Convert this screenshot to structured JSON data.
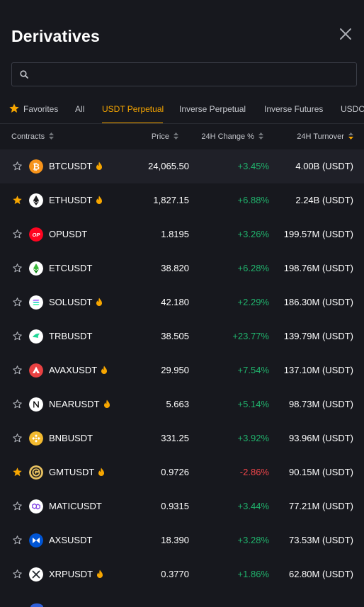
{
  "title": "Derivatives",
  "search": {
    "placeholder": ""
  },
  "tabs": [
    {
      "label": "Favorites",
      "active": false,
      "icon": "star-icon"
    },
    {
      "label": "All",
      "active": false
    },
    {
      "label": "USDT Perpetual",
      "active": true
    },
    {
      "label": "Inverse Perpetual",
      "active": false
    },
    {
      "label": "Inverse Futures",
      "active": false
    },
    {
      "label": "USDC",
      "active": false
    }
  ],
  "columns": {
    "contracts": "Contracts",
    "price": "Price",
    "change": "24H Change %",
    "turnover": "24H Turnover"
  },
  "colors": {
    "accent": "#f7a600",
    "positive": "#20b26c",
    "negative": "#ef454a",
    "background": "#17181e"
  },
  "rows": [
    {
      "symbol": "BTCUSDT",
      "favorite": false,
      "hot": true,
      "coin_icon": "bitcoin-icon",
      "price": "24,065.50",
      "change": "+3.45%",
      "direction": "up",
      "turnover": "4.00B (USDT)"
    },
    {
      "symbol": "ETHUSDT",
      "favorite": true,
      "hot": true,
      "coin_icon": "ethereum-icon",
      "price": "1,827.15",
      "change": "+6.88%",
      "direction": "up",
      "turnover": "2.24B (USDT)"
    },
    {
      "symbol": "OPUSDT",
      "favorite": false,
      "hot": false,
      "coin_icon": "optimism-icon",
      "price": "1.8195",
      "change": "+3.26%",
      "direction": "up",
      "turnover": "199.57M (USDT)"
    },
    {
      "symbol": "ETCUSDT",
      "favorite": false,
      "hot": false,
      "coin_icon": "ethereum-classic-icon",
      "price": "38.820",
      "change": "+6.28%",
      "direction": "up",
      "turnover": "198.76M (USDT)"
    },
    {
      "symbol": "SOLUSDT",
      "favorite": false,
      "hot": true,
      "coin_icon": "solana-icon",
      "price": "42.180",
      "change": "+2.29%",
      "direction": "up",
      "turnover": "186.30M (USDT)"
    },
    {
      "symbol": "TRBUSDT",
      "favorite": false,
      "hot": false,
      "coin_icon": "tellor-icon",
      "price": "38.505",
      "change": "+23.77%",
      "direction": "up",
      "turnover": "139.79M (USDT)"
    },
    {
      "symbol": "AVAXUSDT",
      "favorite": false,
      "hot": true,
      "coin_icon": "avalanche-icon",
      "price": "29.950",
      "change": "+7.54%",
      "direction": "up",
      "turnover": "137.10M (USDT)"
    },
    {
      "symbol": "NEARUSDT",
      "favorite": false,
      "hot": true,
      "coin_icon": "near-icon",
      "price": "5.663",
      "change": "+5.14%",
      "direction": "up",
      "turnover": "98.73M (USDT)"
    },
    {
      "symbol": "BNBUSDT",
      "favorite": false,
      "hot": false,
      "coin_icon": "bnb-icon",
      "price": "331.25",
      "change": "+3.92%",
      "direction": "up",
      "turnover": "93.96M (USDT)"
    },
    {
      "symbol": "GMTUSDT",
      "favorite": true,
      "hot": true,
      "coin_icon": "stepn-gmt-icon",
      "price": "0.9726",
      "change": "-2.86%",
      "direction": "down",
      "turnover": "90.15M (USDT)"
    },
    {
      "symbol": "MATICUSDT",
      "favorite": false,
      "hot": false,
      "coin_icon": "polygon-icon",
      "price": "0.9315",
      "change": "+3.44%",
      "direction": "up",
      "turnover": "77.21M (USDT)"
    },
    {
      "symbol": "AXSUSDT",
      "favorite": false,
      "hot": false,
      "coin_icon": "axie-infinity-icon",
      "price": "18.390",
      "change": "+3.28%",
      "direction": "up",
      "turnover": "73.53M (USDT)"
    },
    {
      "symbol": "XRPUSDT",
      "favorite": false,
      "hot": true,
      "coin_icon": "xrp-icon",
      "price": "0.3770",
      "change": "+1.86%",
      "direction": "up",
      "turnover": "62.80M (USDT)"
    }
  ]
}
